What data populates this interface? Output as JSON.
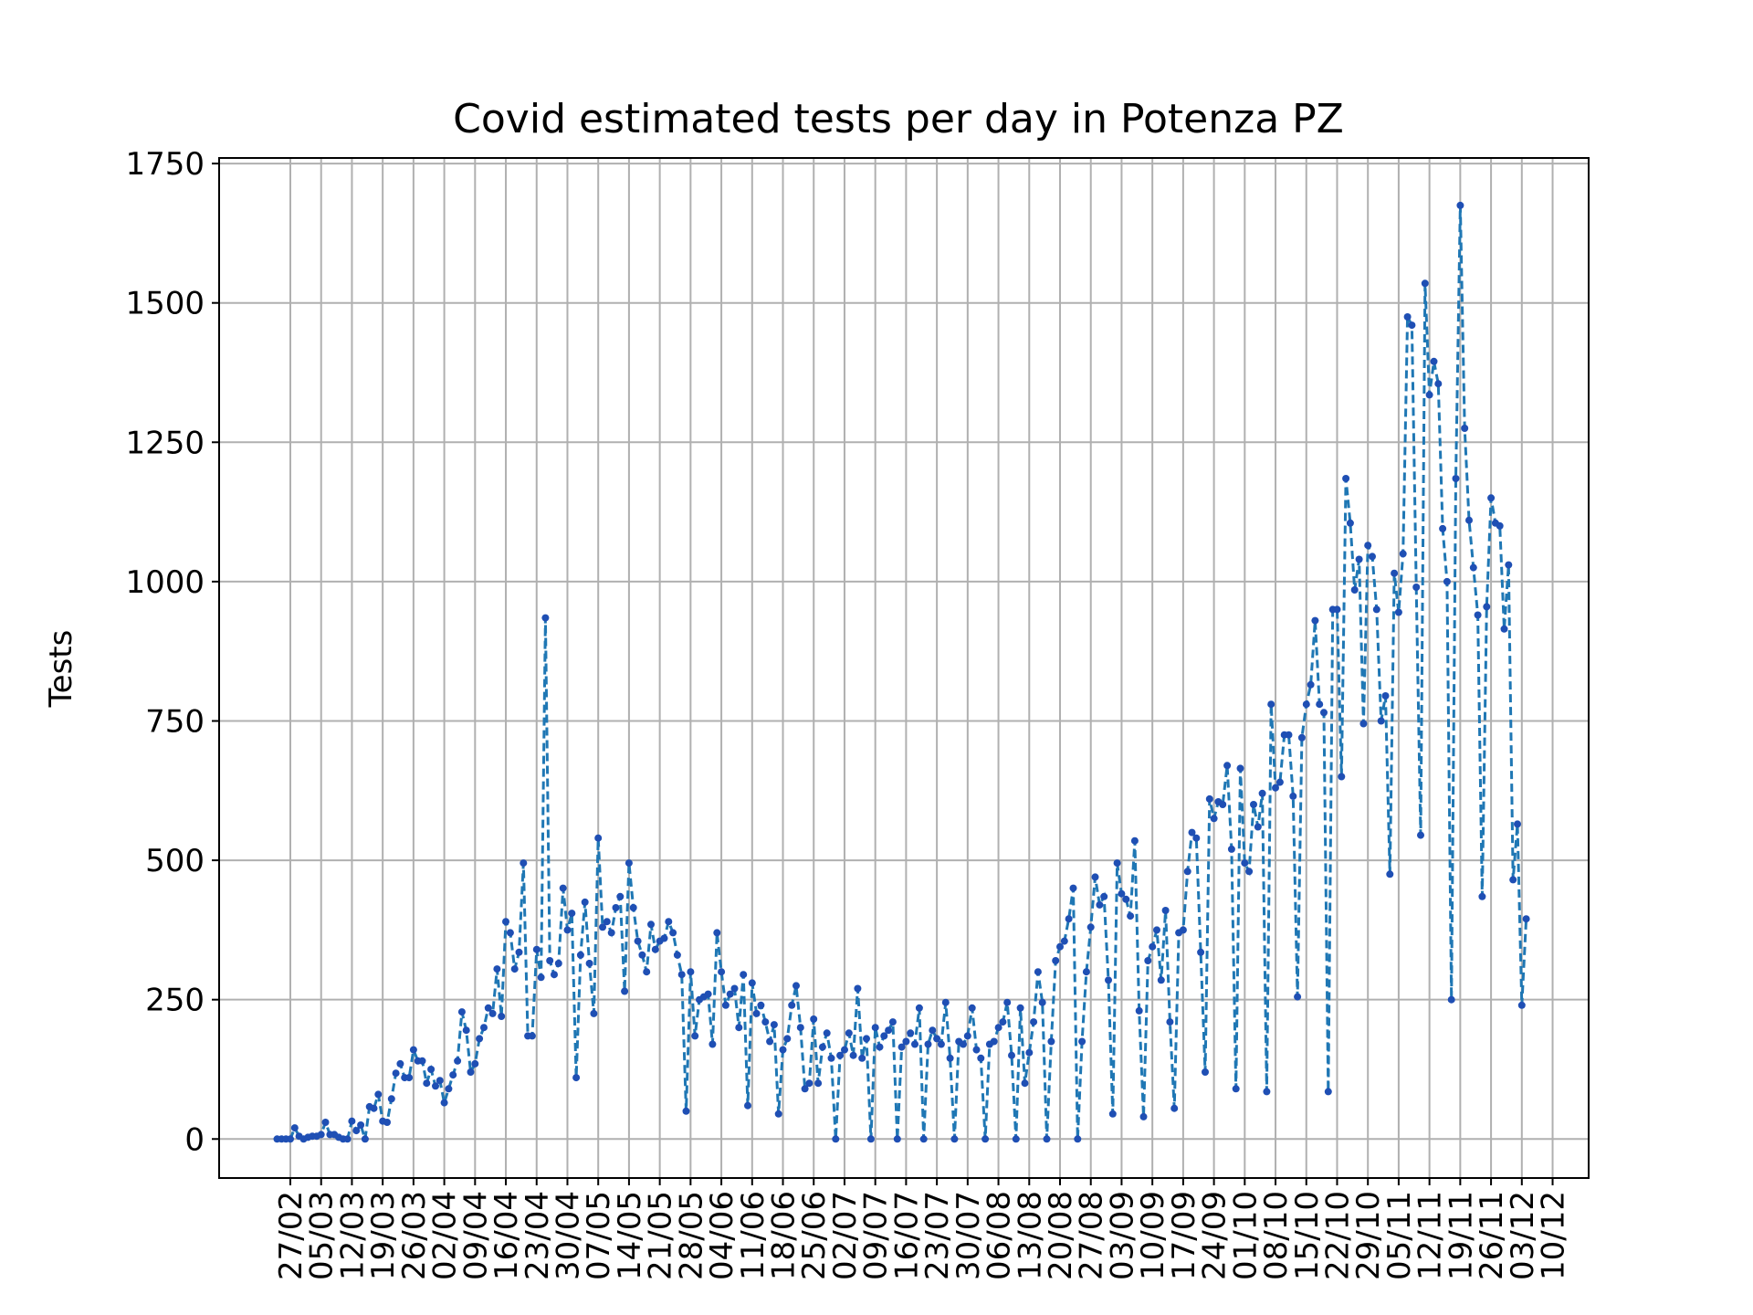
{
  "chart_data": {
    "type": "line",
    "title": "Covid estimated tests per day in Potenza PZ",
    "xlabel": "",
    "ylabel": "Tests",
    "ylim": [
      -70,
      1760
    ],
    "yticks": [
      0,
      250,
      500,
      750,
      1000,
      1250,
      1500,
      1750
    ],
    "xticks": [
      "27/02",
      "05/03",
      "12/03",
      "19/03",
      "26/03",
      "02/04",
      "09/04",
      "16/04",
      "23/04",
      "30/04",
      "07/05",
      "14/05",
      "21/05",
      "28/05",
      "04/06",
      "11/06",
      "18/06",
      "25/06",
      "02/07",
      "09/07",
      "16/07",
      "23/07",
      "30/07",
      "06/08",
      "13/08",
      "20/08",
      "27/08",
      "03/09",
      "10/09",
      "17/09",
      "24/09",
      "01/10",
      "08/10",
      "15/10",
      "22/10",
      "29/10",
      "05/11",
      "12/11",
      "19/11",
      "26/11",
      "03/12",
      "10/12"
    ],
    "grid": true,
    "line_style": "dashed",
    "marker": "dot",
    "colors": {
      "line": "#1f77b4",
      "marker": "#1f4fb4"
    },
    "series": [
      {
        "start_date": "2020-02-24",
        "values": [
          0,
          0,
          0,
          0,
          20,
          5,
          0,
          3,
          5,
          5,
          8,
          30,
          8,
          8,
          3,
          0,
          0,
          32,
          15,
          25,
          0,
          58,
          55,
          80,
          32,
          30,
          72,
          118,
          135,
          110,
          110,
          160,
          140,
          140,
          100,
          125,
          95,
          105,
          65,
          90,
          115,
          140,
          228,
          195,
          120,
          135,
          180,
          200,
          235,
          225,
          305,
          220,
          390,
          370,
          305,
          335,
          495,
          185,
          185,
          340,
          290,
          935,
          320,
          295,
          315,
          450,
          375,
          405,
          110,
          330,
          425,
          315,
          225,
          540,
          380,
          390,
          370,
          415,
          435,
          265,
          495,
          415,
          355,
          330,
          300,
          385,
          340,
          355,
          360,
          390,
          370,
          330,
          295,
          50,
          300,
          185,
          250,
          255,
          260,
          170,
          370,
          300,
          240,
          260,
          270,
          200,
          295,
          60,
          280,
          225,
          240,
          210,
          175,
          205,
          45,
          160,
          180,
          240,
          275,
          200,
          90,
          100,
          215,
          100,
          165,
          190,
          145,
          0,
          150,
          160,
          190,
          150,
          270,
          145,
          180,
          0,
          200,
          165,
          185,
          195,
          210,
          0,
          165,
          175,
          190,
          170,
          235,
          0,
          170,
          195,
          180,
          170,
          245,
          145,
          0,
          175,
          170,
          185,
          235,
          160,
          145,
          0,
          170,
          175,
          200,
          210,
          245,
          150,
          0,
          235,
          100,
          155,
          210,
          300,
          245,
          0,
          175,
          320,
          345,
          355,
          395,
          450,
          0,
          175,
          300,
          380,
          470,
          420,
          435,
          285,
          45,
          495,
          440,
          430,
          400,
          535,
          230,
          40,
          320,
          345,
          375,
          285,
          410,
          210,
          55,
          370,
          375,
          480,
          550,
          540,
          335,
          120,
          610,
          575,
          605,
          600,
          670,
          520,
          90,
          665,
          495,
          480,
          600,
          560,
          620,
          85,
          780,
          630,
          640,
          725,
          725,
          615,
          255,
          720,
          780,
          815,
          930,
          780,
          765,
          85,
          950,
          950,
          650,
          1185,
          1105,
          985,
          1040,
          745,
          1065,
          1045,
          950,
          750,
          795,
          475,
          1015,
          945,
          1050,
          1475,
          1460,
          990,
          545,
          1535,
          1335,
          1395,
          1355,
          1095,
          1000,
          250,
          1185,
          1675,
          1275,
          1110,
          1025,
          940,
          435,
          955,
          1150,
          1105,
          1100,
          915,
          1030,
          465,
          565,
          240,
          395
        ]
      }
    ]
  }
}
